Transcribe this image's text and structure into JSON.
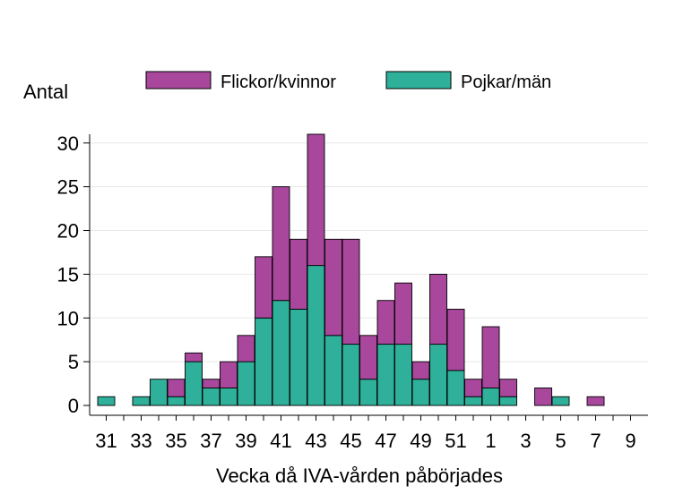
{
  "chart_data": {
    "type": "bar",
    "stacked": true,
    "title": "",
    "xlabel": "Vecka då IVA-vården påbörjades",
    "ylabel": "Antal",
    "ylim": [
      0,
      31
    ],
    "yticks": [
      0,
      5,
      10,
      15,
      20,
      25,
      30
    ],
    "grid": "horizontal",
    "legend_position": "top",
    "categories": [
      "31",
      "32",
      "33",
      "34",
      "35",
      "36",
      "37",
      "38",
      "39",
      "40",
      "41",
      "42",
      "43",
      "44",
      "45",
      "46",
      "47",
      "48",
      "49",
      "50",
      "51",
      "52",
      "1",
      "2",
      "3",
      "4",
      "5",
      "6",
      "7",
      "8",
      "9"
    ],
    "xtick_labels": [
      "31",
      "33",
      "35",
      "37",
      "39",
      "41",
      "43",
      "45",
      "47",
      "49",
      "51",
      "1",
      "3",
      "5",
      "7",
      "9"
    ],
    "series": [
      {
        "name": "Pojkar/män",
        "color": "#2eb09a",
        "values": [
          1,
          0,
          1,
          3,
          1,
          5,
          2,
          2,
          5,
          10,
          12,
          11,
          16,
          8,
          7,
          3,
          7,
          7,
          3,
          7,
          4,
          1,
          2,
          1,
          0,
          0,
          1,
          0,
          0,
          0,
          0
        ]
      },
      {
        "name": "Flickor/kvinnor",
        "color": "#a8479c",
        "values": [
          0,
          0,
          0,
          0,
          2,
          1,
          1,
          3,
          3,
          7,
          13,
          8,
          15,
          11,
          12,
          5,
          5,
          7,
          2,
          8,
          7,
          2,
          7,
          2,
          0,
          2,
          0,
          0,
          1,
          0,
          0
        ]
      }
    ]
  }
}
